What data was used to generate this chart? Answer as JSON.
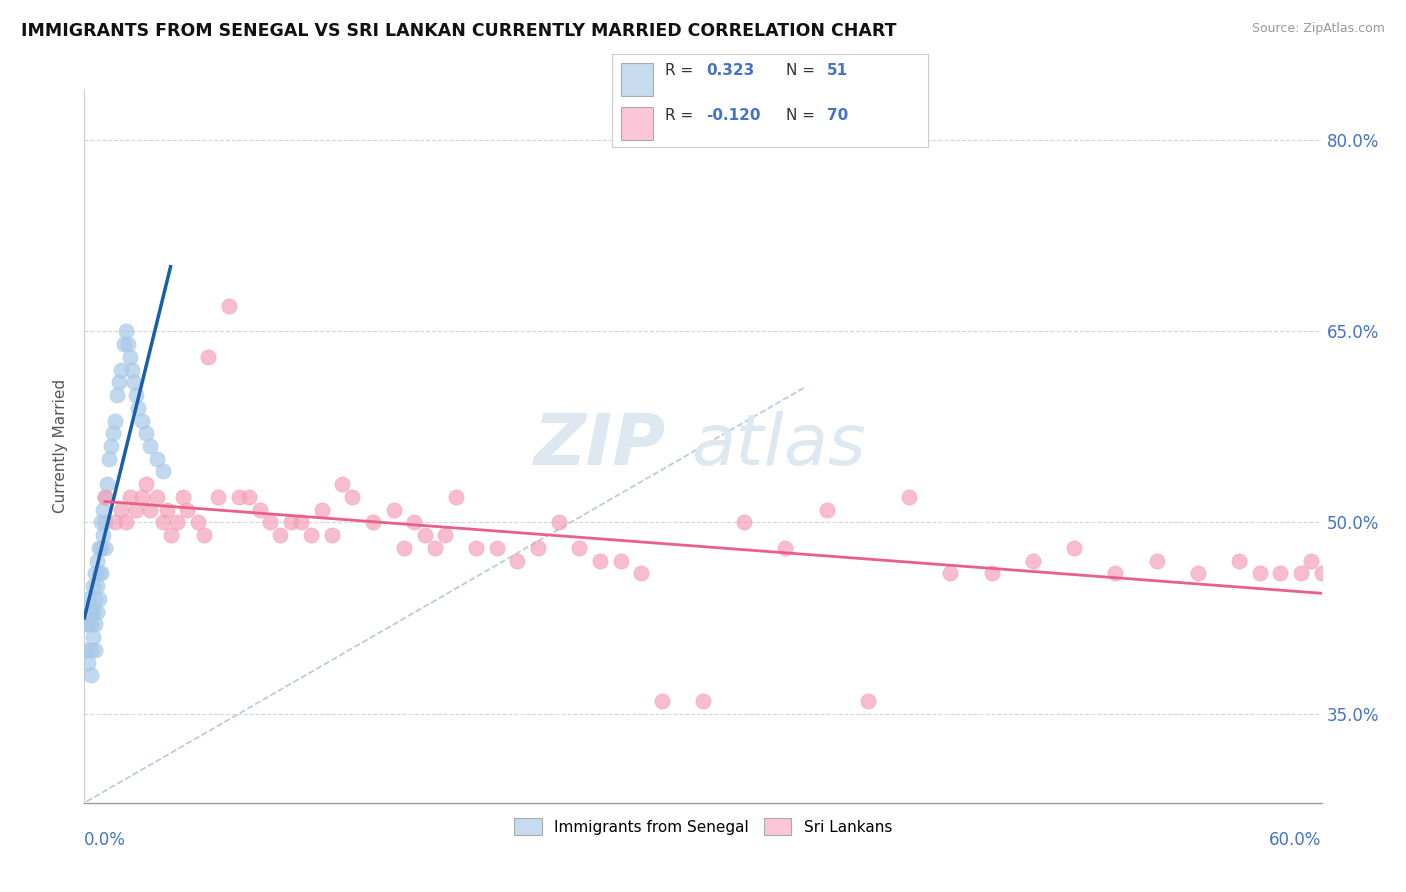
{
  "title": "IMMIGRANTS FROM SENEGAL VS SRI LANKAN CURRENTLY MARRIED CORRELATION CHART",
  "source": "Source: ZipAtlas.com",
  "ylabel": "Currently Married",
  "xlim": [
    0.0,
    0.6
  ],
  "ylim": [
    0.28,
    0.84
  ],
  "y_tick_vals": [
    0.35,
    0.5,
    0.65,
    0.8
  ],
  "y_tick_labels": [
    "35.0%",
    "50.0%",
    "65.0%",
    "80.0%"
  ],
  "blue_color": "#a8c8e8",
  "pink_color": "#f4a0b8",
  "trend_blue": "#1a5fa8",
  "trend_pink": "#e8608a",
  "diag_color": "#a0bcd8",
  "watermark_color": "#dde8f0",
  "blue_x": [
    0.001,
    0.001,
    0.002,
    0.002,
    0.002,
    0.003,
    0.003,
    0.003,
    0.003,
    0.004,
    0.004,
    0.004,
    0.005,
    0.005,
    0.005,
    0.005,
    0.006,
    0.006,
    0.006,
    0.007,
    0.007,
    0.007,
    0.008,
    0.008,
    0.008,
    0.009,
    0.009,
    0.01,
    0.01,
    0.01,
    0.011,
    0.012,
    0.013,
    0.014,
    0.015,
    0.016,
    0.017,
    0.018,
    0.019,
    0.02,
    0.021,
    0.022,
    0.023,
    0.024,
    0.025,
    0.026,
    0.028,
    0.03,
    0.032,
    0.035,
    0.038
  ],
  "blue_y": [
    0.42,
    0.4,
    0.44,
    0.42,
    0.39,
    0.43,
    0.42,
    0.4,
    0.38,
    0.45,
    0.43,
    0.41,
    0.46,
    0.44,
    0.42,
    0.4,
    0.47,
    0.45,
    0.43,
    0.48,
    0.46,
    0.44,
    0.5,
    0.48,
    0.46,
    0.51,
    0.49,
    0.52,
    0.5,
    0.48,
    0.53,
    0.55,
    0.56,
    0.57,
    0.58,
    0.6,
    0.61,
    0.62,
    0.64,
    0.65,
    0.64,
    0.63,
    0.62,
    0.61,
    0.6,
    0.59,
    0.58,
    0.57,
    0.56,
    0.55,
    0.54
  ],
  "pink_x": [
    0.01,
    0.015,
    0.018,
    0.02,
    0.022,
    0.025,
    0.028,
    0.03,
    0.032,
    0.035,
    0.038,
    0.04,
    0.042,
    0.045,
    0.048,
    0.05,
    0.055,
    0.058,
    0.06,
    0.065,
    0.07,
    0.075,
    0.08,
    0.085,
    0.09,
    0.095,
    0.1,
    0.105,
    0.11,
    0.115,
    0.12,
    0.125,
    0.13,
    0.14,
    0.15,
    0.155,
    0.16,
    0.165,
    0.17,
    0.175,
    0.18,
    0.19,
    0.2,
    0.21,
    0.22,
    0.23,
    0.24,
    0.25,
    0.26,
    0.27,
    0.28,
    0.3,
    0.32,
    0.34,
    0.36,
    0.38,
    0.4,
    0.42,
    0.44,
    0.46,
    0.48,
    0.5,
    0.52,
    0.54,
    0.56,
    0.57,
    0.58,
    0.59,
    0.595,
    0.6
  ],
  "pink_y": [
    0.52,
    0.5,
    0.51,
    0.5,
    0.52,
    0.51,
    0.52,
    0.53,
    0.51,
    0.52,
    0.5,
    0.51,
    0.49,
    0.5,
    0.52,
    0.51,
    0.5,
    0.49,
    0.63,
    0.52,
    0.67,
    0.52,
    0.52,
    0.51,
    0.5,
    0.49,
    0.5,
    0.5,
    0.49,
    0.51,
    0.49,
    0.53,
    0.52,
    0.5,
    0.51,
    0.48,
    0.5,
    0.49,
    0.48,
    0.49,
    0.52,
    0.48,
    0.48,
    0.47,
    0.48,
    0.5,
    0.48,
    0.47,
    0.47,
    0.46,
    0.36,
    0.36,
    0.5,
    0.48,
    0.51,
    0.36,
    0.52,
    0.46,
    0.46,
    0.47,
    0.48,
    0.46,
    0.47,
    0.46,
    0.47,
    0.46,
    0.46,
    0.46,
    0.47,
    0.46
  ]
}
